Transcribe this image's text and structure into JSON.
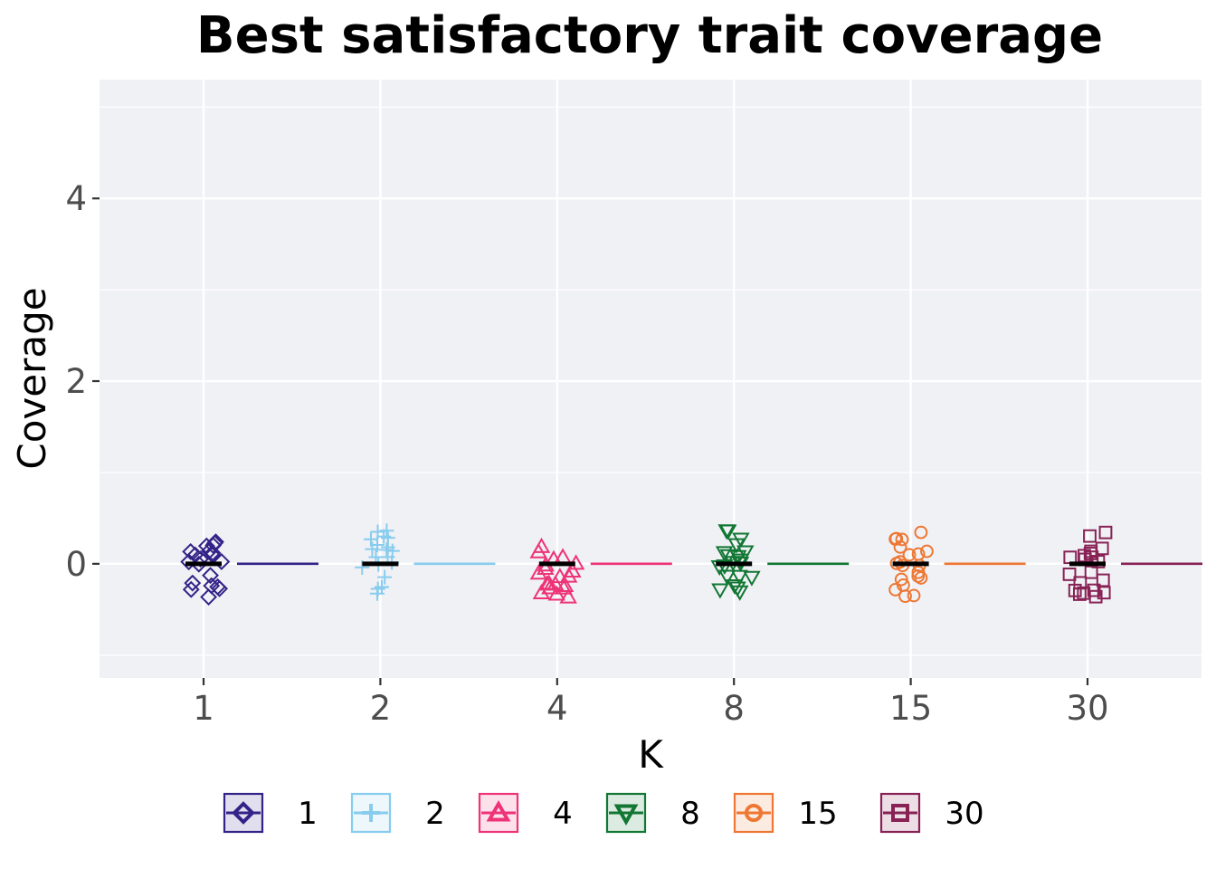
{
  "chart_data": {
    "type": "scatter",
    "title": "Best satisfactory trait coverage",
    "xlabel": "K",
    "ylabel": "Coverage",
    "categories": [
      "1",
      "2",
      "4",
      "8",
      "15",
      "30"
    ],
    "ylim": [
      -1.25,
      5.3
    ],
    "yticks": [
      0,
      2,
      4
    ],
    "grid": true,
    "legend_position": "bottom",
    "series": [
      {
        "name": "1",
        "values": [
          0,
          0,
          0,
          0,
          0,
          0,
          0,
          0,
          0,
          0,
          0,
          0,
          0,
          0,
          0,
          0,
          0,
          0,
          0,
          0
        ],
        "median": 0,
        "color": "#332288",
        "marker": "diamond"
      },
      {
        "name": "2",
        "values": [
          0,
          0,
          0,
          0,
          0,
          0,
          0,
          0,
          0,
          0,
          0,
          0,
          0,
          0,
          0,
          0,
          0,
          0,
          0,
          0
        ],
        "median": 0,
        "color": "#88ccee",
        "marker": "plus"
      },
      {
        "name": "4",
        "values": [
          0,
          0,
          0,
          0,
          0,
          0,
          0,
          0,
          0,
          0,
          0,
          0,
          0,
          0,
          0,
          0,
          0,
          0,
          0,
          0
        ],
        "median": 0,
        "color": "#ee3377",
        "marker": "triangle-up"
      },
      {
        "name": "8",
        "values": [
          0,
          0,
          0,
          0,
          0,
          0,
          0,
          0,
          0,
          0,
          0,
          0,
          0,
          0,
          0,
          0,
          0,
          0,
          0,
          0
        ],
        "median": 0,
        "color": "#117733",
        "marker": "triangle-down"
      },
      {
        "name": "15",
        "values": [
          0,
          0,
          0,
          0,
          0,
          0,
          0,
          0,
          0,
          0,
          0,
          0,
          0,
          0,
          0,
          0,
          0,
          0,
          0,
          0
        ],
        "median": 0,
        "color": "#ee7733",
        "marker": "circle"
      },
      {
        "name": "30",
        "values": [
          0,
          0,
          0,
          0,
          0,
          0,
          0,
          0,
          0,
          0,
          0,
          0,
          0,
          0,
          0,
          0,
          0,
          0,
          0,
          0
        ],
        "median": 0,
        "color": "#882255",
        "marker": "square"
      }
    ]
  }
}
